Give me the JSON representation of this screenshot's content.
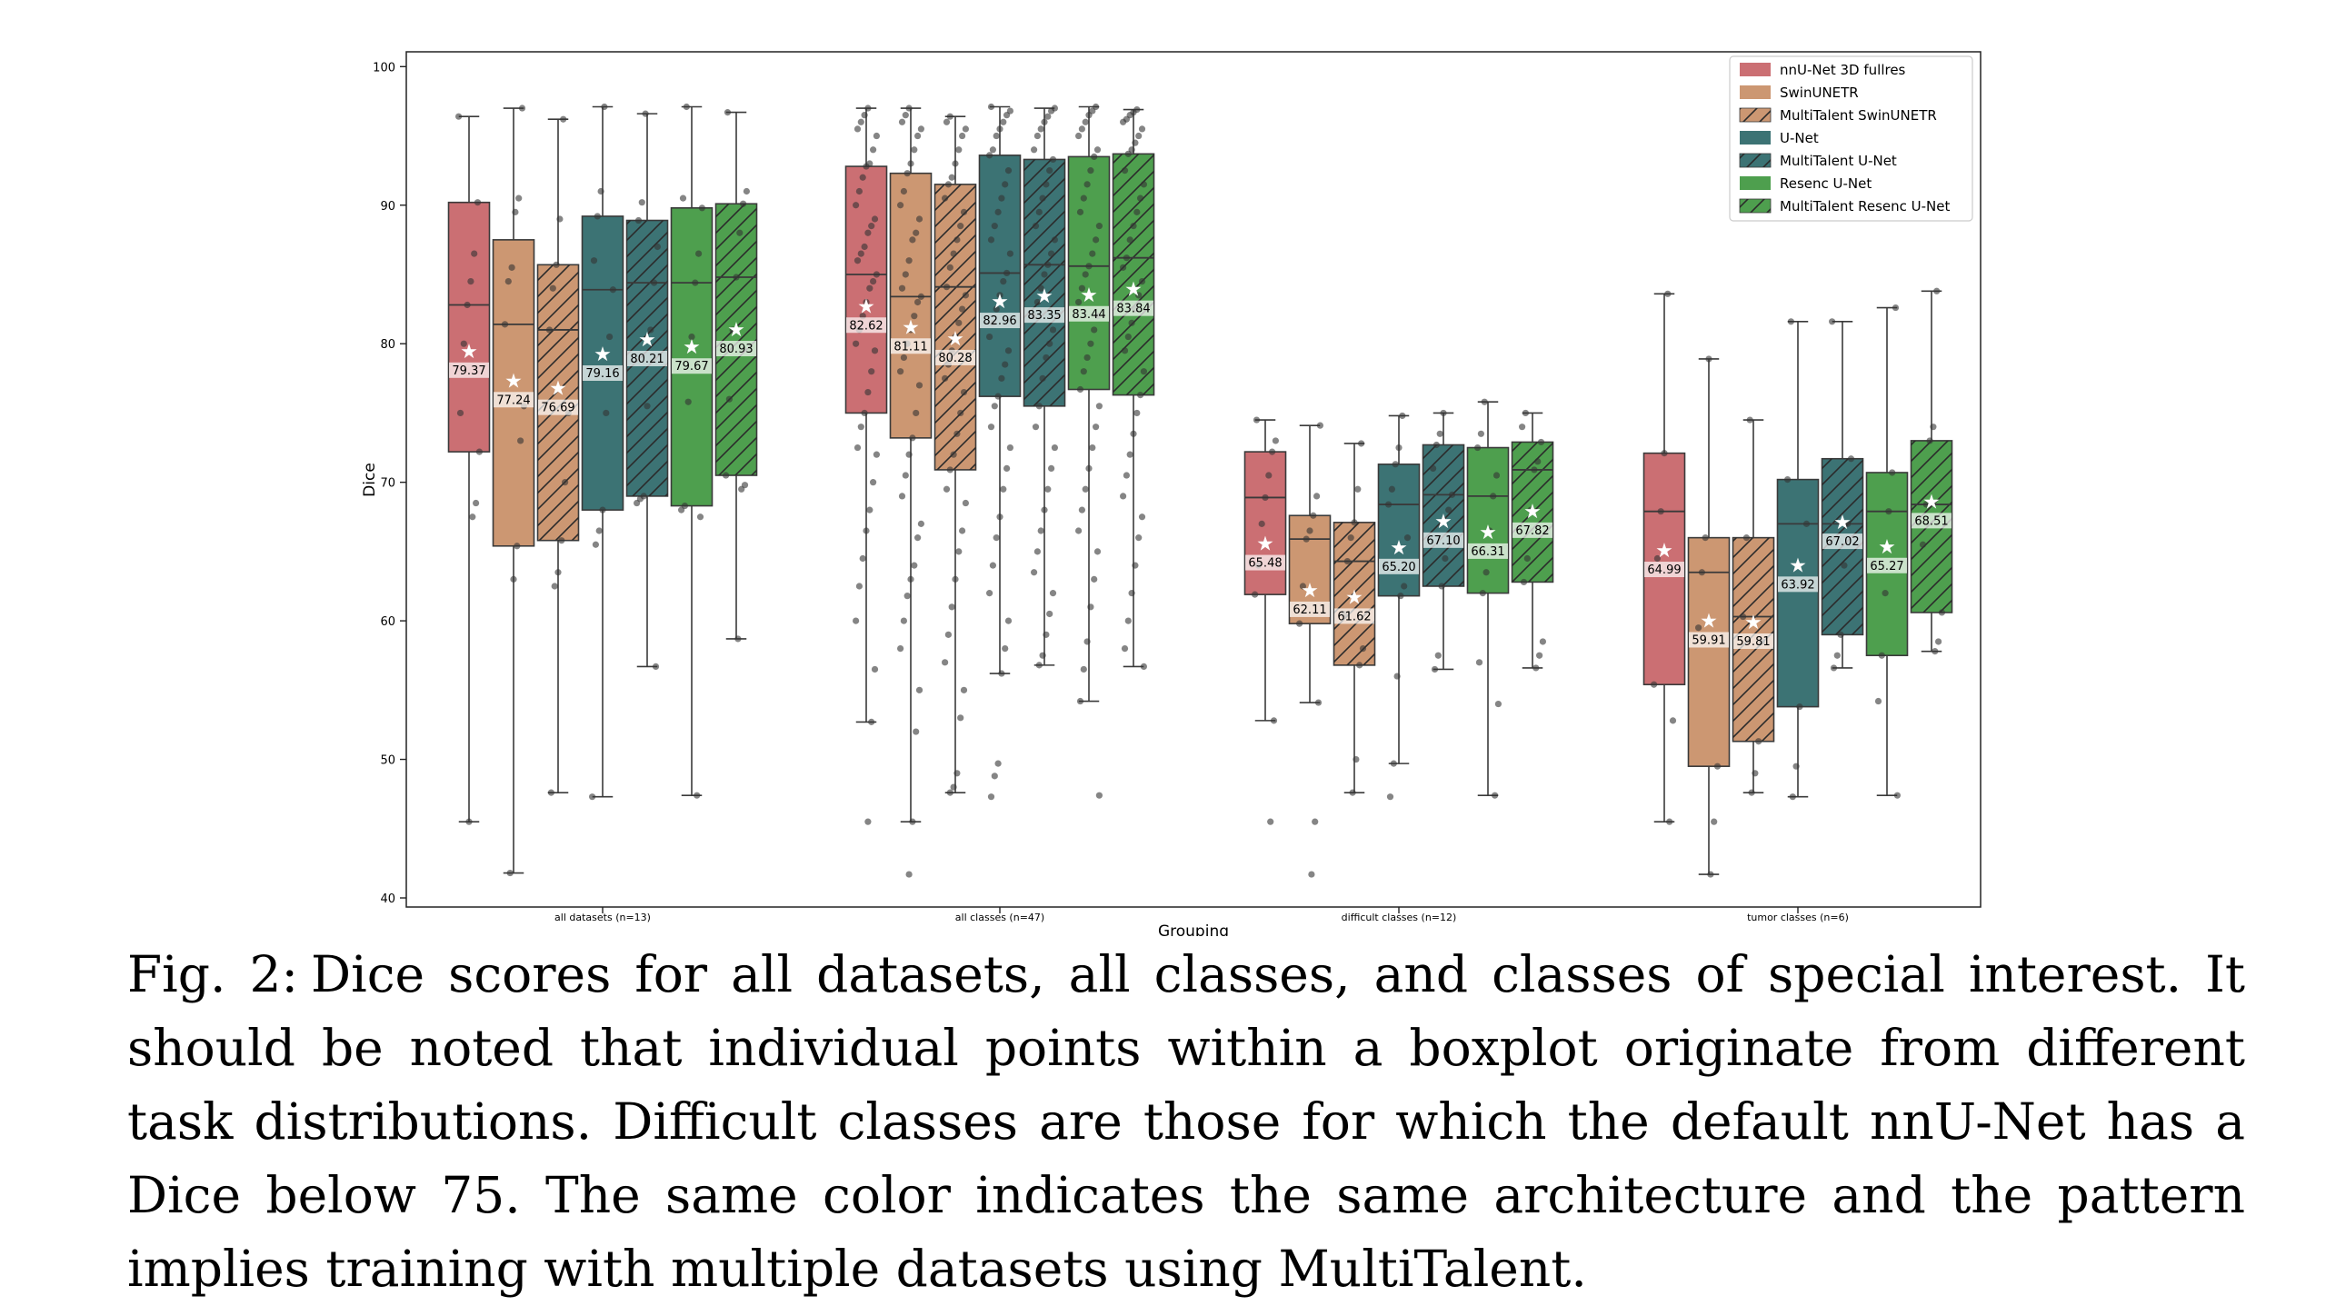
{
  "figure": {
    "chart_data": {
      "type": "box",
      "xlabel": "Grouping",
      "ylabel": "Dice",
      "ylim": [
        39,
        101
      ],
      "yticks": [
        40,
        50,
        60,
        70,
        80,
        90,
        100
      ],
      "legend_placement": "top-right",
      "grid": false,
      "groups": [
        "all datasets (n=13)",
        "all classes (n=47)",
        "difficult classes (n=12)",
        "tumor classes (n=6)"
      ],
      "series": [
        {
          "name": "nnU-Net 3D fullres",
          "color": "#cb6f73",
          "hatch": false
        },
        {
          "name": "SwinUNETR",
          "color": "#cc9772",
          "hatch": false
        },
        {
          "name": "MultiTalent SwinUNETR",
          "color": "#cc9772",
          "hatch": true
        },
        {
          "name": "U-Net",
          "color": "#3c7374",
          "hatch": false
        },
        {
          "name": "MultiTalent U-Net",
          "color": "#3c7374",
          "hatch": true
        },
        {
          "name": "Resenc U-Net",
          "color": "#4e9f4e",
          "hatch": false
        },
        {
          "name": "MultiTalent Resenc U-Net",
          "color": "#4e9f4e",
          "hatch": true
        }
      ],
      "boxes": [
        [
          {
            "whislo": 45.5,
            "q1": 72.2,
            "med": 82.8,
            "q3": 90.2,
            "whishi": 96.4,
            "mean": 79.37,
            "mean_label": "79.37",
            "points": [
              96.4,
              90.2,
              86.5,
              84.5,
              82.8,
              80.0,
              75.0,
              72.2,
              68.5,
              67.5,
              45.5
            ]
          },
          {
            "whislo": 41.8,
            "q1": 65.4,
            "med": 81.4,
            "q3": 87.5,
            "whishi": 97.0,
            "mean": 77.24,
            "mean_label": "77.24",
            "points": [
              97.0,
              90.5,
              89.5,
              85.5,
              84.5,
              81.4,
              75.5,
              73.0,
              65.4,
              63.0,
              41.8
            ]
          },
          {
            "whislo": 47.6,
            "q1": 65.8,
            "med": 81.0,
            "q3": 85.7,
            "whishi": 96.2,
            "mean": 76.69,
            "mean_label": "76.69",
            "points": [
              96.2,
              89.0,
              85.7,
              84.0,
              81.0,
              75.0,
              70.0,
              65.8,
              63.5,
              62.5,
              47.6
            ]
          },
          {
            "whislo": 47.3,
            "q1": 68.0,
            "med": 83.9,
            "q3": 89.2,
            "whishi": 97.1,
            "mean": 79.16,
            "mean_label": "79.16",
            "points": [
              97.1,
              91.0,
              89.2,
              86.0,
              83.9,
              80.5,
              75.0,
              68.0,
              66.5,
              65.5,
              47.3
            ]
          },
          {
            "whislo": 56.7,
            "q1": 69.0,
            "med": 84.4,
            "q3": 88.9,
            "whishi": 96.6,
            "mean": 80.21,
            "mean_label": "80.21",
            "points": [
              96.6,
              90.2,
              88.9,
              87.0,
              84.4,
              81.0,
              75.5,
              69.0,
              68.8,
              68.5,
              56.7
            ]
          },
          {
            "whislo": 47.4,
            "q1": 68.3,
            "med": 84.4,
            "q3": 89.8,
            "whishi": 97.1,
            "mean": 79.67,
            "mean_label": "79.67",
            "points": [
              97.1,
              90.5,
              89.8,
              86.5,
              84.4,
              80.5,
              75.8,
              68.3,
              68.0,
              67.5,
              47.4
            ]
          },
          {
            "whislo": 58.7,
            "q1": 70.5,
            "med": 84.8,
            "q3": 90.1,
            "whishi": 96.7,
            "mean": 80.93,
            "mean_label": "80.93",
            "points": [
              96.7,
              91.0,
              90.1,
              88.0,
              84.8,
              81.0,
              76.0,
              70.5,
              69.8,
              69.5,
              58.7
            ]
          }
        ],
        [
          {
            "whislo": 52.7,
            "q1": 75.0,
            "med": 85.0,
            "q3": 92.8,
            "whishi": 97.0,
            "mean": 82.62,
            "mean_label": "82.62",
            "points": [
              97.0,
              96.5,
              96.0,
              95.5,
              95.0,
              94.0,
              93.0,
              92.8,
              92.0,
              91.0,
              90.0,
              89.0,
              88.5,
              88.0,
              87.0,
              86.5,
              86.0,
              85.0,
              84.5,
              84.0,
              83.0,
              82.0,
              81.0,
              80.0,
              79.5,
              78.0,
              76.5,
              75.0,
              74.0,
              72.5,
              72.0,
              70.0,
              68.0,
              66.5,
              64.5,
              62.5,
              60.0,
              56.5,
              52.7,
              45.5
            ]
          },
          {
            "whislo": 45.5,
            "q1": 73.2,
            "med": 83.4,
            "q3": 92.3,
            "whishi": 97.0,
            "mean": 81.11,
            "mean_label": "81.11",
            "points": [
              97.0,
              96.5,
              96.0,
              95.5,
              95.0,
              94.0,
              93.0,
              92.3,
              91.0,
              90.0,
              89.0,
              88.0,
              87.5,
              86.0,
              85.0,
              84.0,
              83.4,
              83.0,
              82.0,
              81.0,
              80.0,
              79.0,
              78.0,
              77.0,
              75.0,
              73.2,
              72.0,
              70.5,
              69.0,
              67.0,
              66.0,
              64.0,
              63.0,
              61.8,
              60.0,
              58.0,
              55.0,
              52.0,
              45.5,
              41.7
            ]
          },
          {
            "whislo": 47.6,
            "q1": 70.9,
            "med": 84.1,
            "q3": 91.5,
            "whishi": 96.4,
            "mean": 80.28,
            "mean_label": "80.28",
            "points": [
              96.4,
              96.0,
              95.5,
              95.0,
              94.0,
              93.0,
              92.0,
              91.5,
              90.5,
              89.5,
              88.5,
              87.5,
              86.5,
              85.5,
              84.1,
              83.5,
              82.5,
              81.5,
              80.5,
              79.5,
              78.5,
              77.5,
              76.5,
              75.0,
              73.5,
              72.0,
              70.9,
              69.5,
              68.5,
              66.5,
              65.0,
              63.0,
              61.0,
              59.0,
              57.0,
              55.0,
              53.0,
              49.0,
              48.0,
              47.6
            ]
          },
          {
            "whislo": 56.2,
            "q1": 76.2,
            "med": 85.1,
            "q3": 93.6,
            "whishi": 97.1,
            "mean": 82.96,
            "mean_label": "82.96",
            "points": [
              97.1,
              96.8,
              96.5,
              96.0,
              95.5,
              95.0,
              94.0,
              93.6,
              92.5,
              91.5,
              90.5,
              89.5,
              88.5,
              87.5,
              86.5,
              85.1,
              84.5,
              83.5,
              82.5,
              81.5,
              80.5,
              79.5,
              78.5,
              77.5,
              76.2,
              75.5,
              74.0,
              72.5,
              71.0,
              69.5,
              67.5,
              66.0,
              64.0,
              62.0,
              60.0,
              58.0,
              56.2,
              49.7,
              48.8,
              47.3
            ]
          },
          {
            "whislo": 56.8,
            "q1": 75.5,
            "med": 85.7,
            "q3": 93.3,
            "whishi": 97.0,
            "mean": 83.35,
            "mean_label": "83.35",
            "points": [
              97.0,
              96.8,
              96.4,
              96.0,
              95.5,
              95.0,
              94.0,
              93.3,
              92.5,
              91.5,
              90.5,
              89.5,
              88.5,
              87.5,
              86.5,
              85.7,
              85.0,
              84.0,
              83.0,
              82.0,
              81.0,
              80.0,
              79.0,
              77.5,
              75.5,
              74.0,
              72.5,
              71.0,
              69.5,
              68.0,
              66.5,
              65.0,
              63.5,
              62.0,
              60.5,
              59.0,
              57.5,
              56.8
            ]
          },
          {
            "whislo": 54.2,
            "q1": 76.7,
            "med": 85.6,
            "q3": 93.5,
            "whishi": 97.1,
            "mean": 83.44,
            "mean_label": "83.44",
            "points": [
              97.1,
              96.8,
              96.5,
              96.0,
              95.5,
              95.0,
              94.0,
              93.5,
              92.5,
              91.5,
              90.5,
              89.5,
              88.5,
              87.5,
              86.5,
              85.6,
              85.0,
              84.0,
              83.0,
              82.0,
              81.0,
              80.0,
              79.0,
              78.0,
              76.7,
              75.5,
              74.0,
              72.5,
              71.0,
              69.5,
              68.0,
              66.5,
              65.0,
              63.0,
              61.0,
              58.5,
              56.5,
              54.2,
              47.4
            ]
          },
          {
            "whislo": 56.7,
            "q1": 76.3,
            "med": 86.2,
            "q3": 93.7,
            "whishi": 96.9,
            "mean": 83.84,
            "mean_label": "83.84",
            "points": [
              96.9,
              96.7,
              96.5,
              96.2,
              96.0,
              95.5,
              95.0,
              94.5,
              94.0,
              93.7,
              92.5,
              91.5,
              90.5,
              89.5,
              88.5,
              87.5,
              86.2,
              85.5,
              84.5,
              83.5,
              82.5,
              81.5,
              80.5,
              79.5,
              78.0,
              76.3,
              75.0,
              73.5,
              72.0,
              70.5,
              69.0,
              67.5,
              66.0,
              64.0,
              62.0,
              60.0,
              58.0,
              56.7
            ]
          }
        ],
        [
          {
            "whislo": 52.8,
            "q1": 61.9,
            "med": 68.9,
            "q3": 72.2,
            "whishi": 74.5,
            "mean": 65.48,
            "mean_label": "65.48",
            "points": [
              74.5,
              73.0,
              72.2,
              70.5,
              68.9,
              67.0,
              64.0,
              61.9,
              52.8,
              45.5
            ]
          },
          {
            "whislo": 54.1,
            "q1": 59.8,
            "med": 65.9,
            "q3": 67.6,
            "whishi": 74.1,
            "mean": 62.11,
            "mean_label": "62.11",
            "points": [
              74.1,
              69.0,
              67.6,
              66.5,
              65.9,
              62.5,
              59.8,
              54.1,
              45.5,
              41.7
            ]
          },
          {
            "whislo": 47.6,
            "q1": 56.8,
            "med": 64.3,
            "q3": 67.1,
            "whishi": 72.8,
            "mean": 61.62,
            "mean_label": "61.62",
            "points": [
              72.8,
              69.5,
              67.1,
              66.0,
              64.3,
              60.5,
              58.0,
              56.8,
              50.0,
              47.6
            ]
          },
          {
            "whislo": 49.7,
            "q1": 61.8,
            "med": 68.4,
            "q3": 71.3,
            "whishi": 74.8,
            "mean": 65.2,
            "mean_label": "65.20",
            "points": [
              74.8,
              72.5,
              71.3,
              69.5,
              68.4,
              66.0,
              62.5,
              61.8,
              56.0,
              49.7,
              47.3
            ]
          },
          {
            "whislo": 56.5,
            "q1": 62.5,
            "med": 69.1,
            "q3": 72.7,
            "whishi": 75.0,
            "mean": 67.1,
            "mean_label": "67.10",
            "points": [
              75.0,
              73.5,
              72.7,
              71.0,
              69.1,
              68.0,
              64.5,
              62.5,
              57.5,
              56.5
            ]
          },
          {
            "whislo": 47.4,
            "q1": 62.0,
            "med": 69.0,
            "q3": 72.5,
            "whishi": 75.8,
            "mean": 66.31,
            "mean_label": "66.31",
            "points": [
              75.8,
              73.5,
              72.5,
              70.5,
              69.0,
              66.5,
              63.5,
              62.0,
              57.0,
              54.0,
              47.4
            ]
          },
          {
            "whislo": 56.6,
            "q1": 62.8,
            "med": 70.9,
            "q3": 72.9,
            "whishi": 75.0,
            "mean": 67.82,
            "mean_label": "67.82",
            "points": [
              75.0,
              74.0,
              72.9,
              71.5,
              70.9,
              68.0,
              64.5,
              62.8,
              58.5,
              57.5,
              56.6
            ]
          }
        ],
        [
          {
            "whislo": 45.5,
            "q1": 55.4,
            "med": 67.9,
            "q3": 72.1,
            "whishi": 83.6,
            "mean": 64.99,
            "mean_label": "64.99",
            "points": [
              83.6,
              72.1,
              67.9,
              64.5,
              55.4,
              52.8,
              45.5
            ]
          },
          {
            "whislo": 41.7,
            "q1": 49.5,
            "med": 63.5,
            "q3": 66.0,
            "whishi": 78.9,
            "mean": 59.91,
            "mean_label": "59.91",
            "points": [
              78.9,
              66.0,
              63.5,
              59.5,
              49.5,
              45.5,
              41.7
            ]
          },
          {
            "whislo": 47.6,
            "q1": 51.3,
            "med": 60.3,
            "q3": 66.0,
            "whishi": 74.5,
            "mean": 59.81,
            "mean_label": "59.81",
            "points": [
              74.5,
              66.0,
              60.3,
              58.5,
              51.3,
              49.0,
              47.6
            ]
          },
          {
            "whislo": 47.3,
            "q1": 53.8,
            "med": 67.0,
            "q3": 70.2,
            "whishi": 81.6,
            "mean": 63.92,
            "mean_label": "63.92",
            "points": [
              81.6,
              70.2,
              67.0,
              62.5,
              53.8,
              49.5,
              47.3
            ]
          },
          {
            "whislo": 56.6,
            "q1": 59.0,
            "med": 67.0,
            "q3": 71.7,
            "whishi": 81.6,
            "mean": 67.02,
            "mean_label": "67.02",
            "points": [
              81.6,
              71.7,
              67.0,
              64.0,
              59.0,
              57.5,
              56.6
            ]
          },
          {
            "whislo": 47.4,
            "q1": 57.5,
            "med": 67.9,
            "q3": 70.7,
            "whishi": 82.6,
            "mean": 65.27,
            "mean_label": "65.27",
            "points": [
              82.6,
              70.7,
              67.9,
              62.0,
              57.5,
              54.2,
              47.4
            ]
          },
          {
            "whislo": 57.8,
            "q1": 60.6,
            "med": 68.4,
            "q3": 73.0,
            "whishi": 83.8,
            "mean": 68.51,
            "mean_label": "68.51",
            "points": [
              83.8,
              74.0,
              73.0,
              68.4,
              65.5,
              60.6,
              58.5,
              57.8
            ]
          }
        ]
      ]
    }
  },
  "caption": {
    "label": "Fig. 2:",
    "text": "Dice scores for all datasets, all classes, and classes of special interest. It should be noted that individual points within a boxplot originate from different task distributions. Difficult classes are those for which the default nnU-Net has a Dice below 75. The same color indicates the same architecture and the pattern implies training with multiple datasets using MultiTalent."
  }
}
